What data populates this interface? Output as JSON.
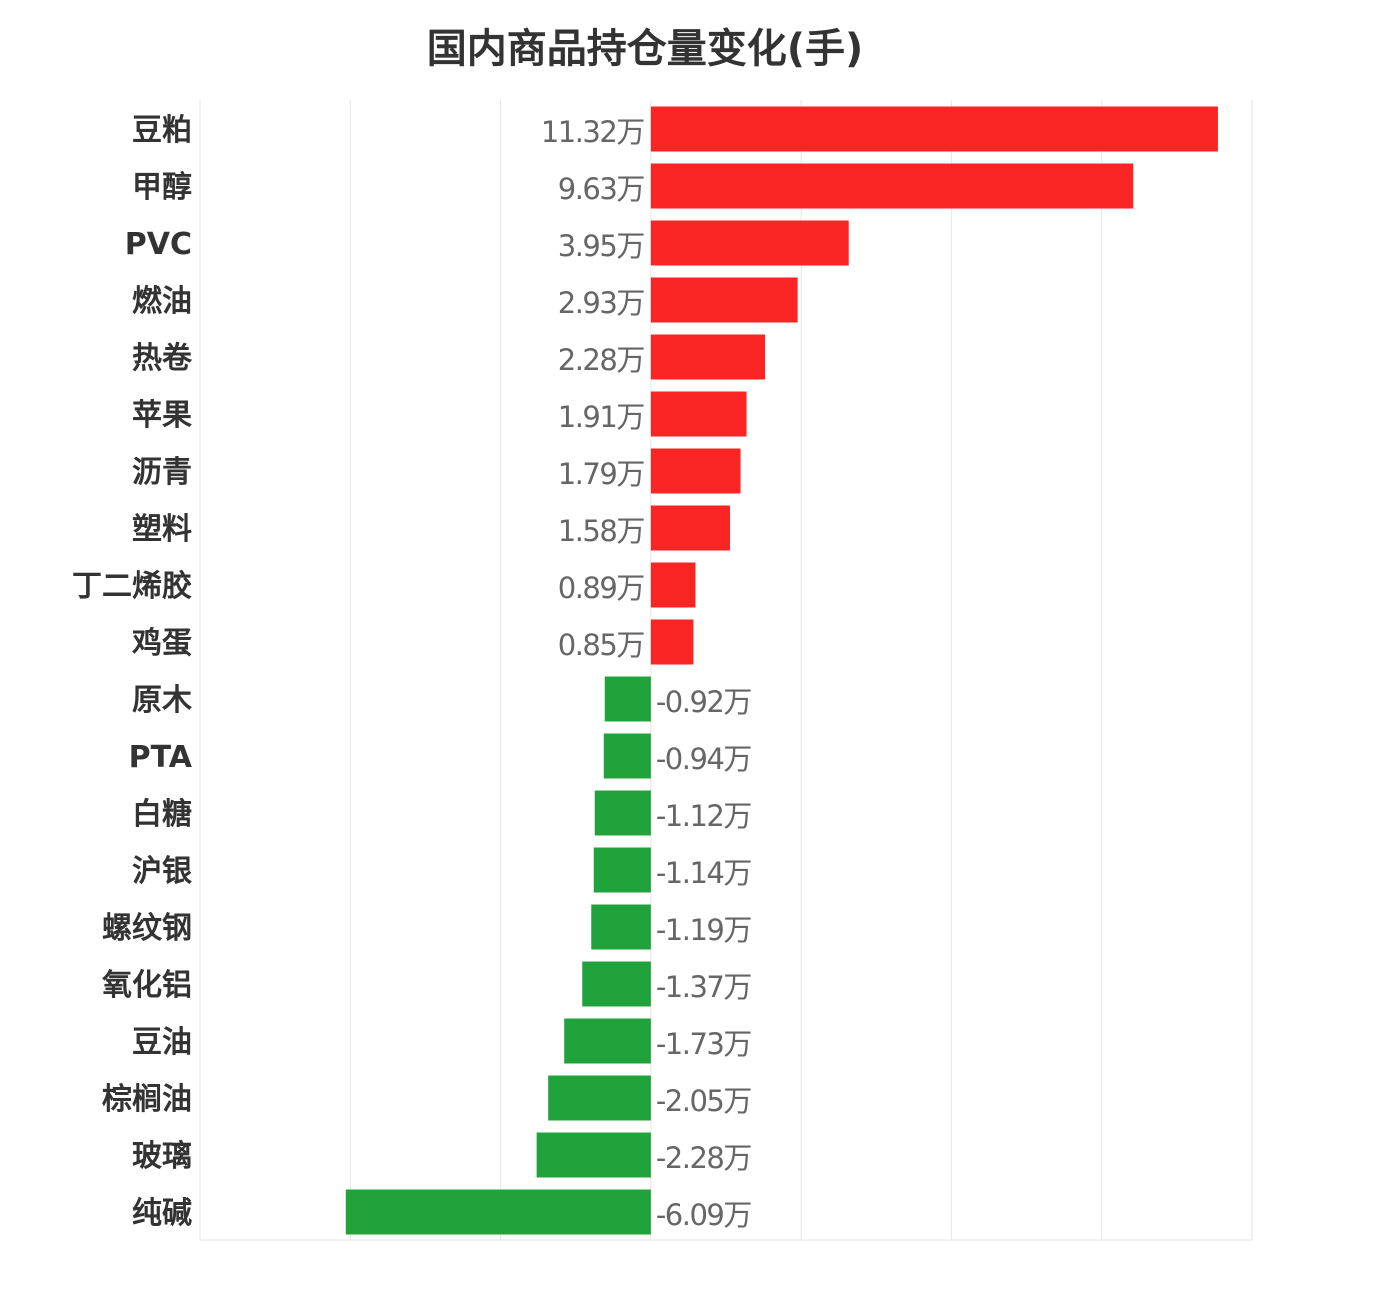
{
  "chart_data": {
    "type": "bar",
    "orientation": "horizontal",
    "title": "国内商品持仓量变化(手)",
    "unit_suffix": "万",
    "xlabel": "",
    "ylabel": "",
    "xlim": [
      -9,
      12
    ],
    "grid_step": 3,
    "grid": true,
    "categories": [
      "豆粕",
      "甲醇",
      "PVC",
      "燃油",
      "热卷",
      "苹果",
      "沥青",
      "塑料",
      "丁二烯胶",
      "鸡蛋",
      "原木",
      "PTA",
      "白糖",
      "沪银",
      "螺纹钢",
      "氧化铝",
      "豆油",
      "棕榈油",
      "玻璃",
      "纯碱"
    ],
    "values": [
      11.32,
      9.63,
      3.95,
      2.93,
      2.28,
      1.91,
      1.79,
      1.58,
      0.89,
      0.85,
      -0.92,
      -0.94,
      -1.12,
      -1.14,
      -1.19,
      -1.37,
      -1.73,
      -2.05,
      -2.28,
      -6.09
    ],
    "value_labels": [
      "11.32万",
      "9.63万",
      "3.95万",
      "2.93万",
      "2.28万",
      "1.91万",
      "1.79万",
      "1.58万",
      "0.89万",
      "0.85万",
      "-0.92万",
      "-0.94万",
      "-1.12万",
      "-1.14万",
      "-1.19万",
      "-1.37万",
      "-1.73万",
      "-2.05万",
      "-2.28万",
      "-6.09万"
    ],
    "colors": {
      "positive": "#f92424",
      "negative": "#21a33b",
      "grid": "#e6e6e6"
    }
  }
}
